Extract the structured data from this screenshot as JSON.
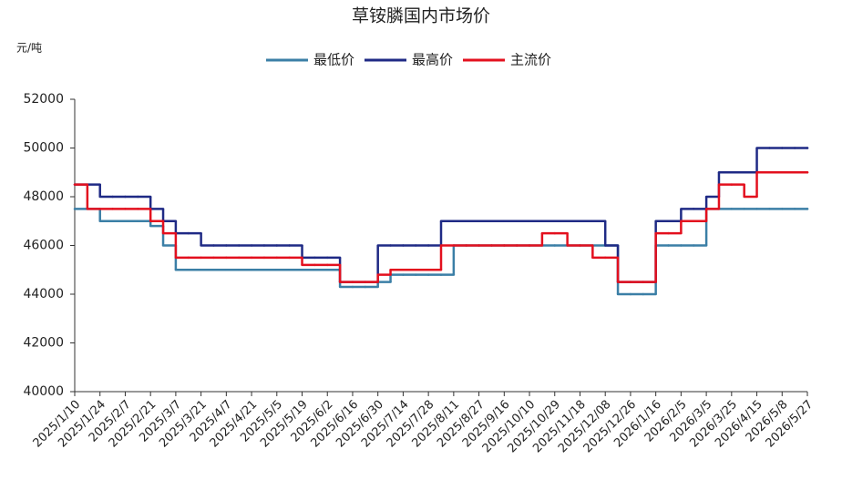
{
  "chart_data": {
    "type": "line",
    "title": "草铵膦国内市场价",
    "y_label": "元/吨",
    "categories": [
      "2025/1/10",
      null,
      "2025/1/24",
      null,
      "2025/2/7",
      null,
      "2025/2/21",
      null,
      "2025/3/7",
      null,
      "2025/3/21",
      null,
      "2025/4/7",
      null,
      "2025/4/21",
      null,
      "2025/5/5",
      null,
      "2025/5/19",
      null,
      "2025/6/2",
      null,
      "2025/6/16",
      null,
      "2025/6/30",
      null,
      "2025/7/14",
      null,
      "2025/7/28",
      null,
      "2025/8/11",
      null,
      "2025/8/27",
      null,
      "2025/9/16",
      null,
      "2025/10/10",
      null,
      "2025/10/29",
      null,
      "2025/11/18",
      null,
      "2025/12/08",
      null,
      "2025/12/26",
      null,
      "2026/1/16",
      null,
      "2026/2/5",
      null,
      "2026/3/5",
      null,
      "2026/3/25",
      null,
      "2026/4/15",
      null,
      "2026/5/8",
      null,
      "2026/5/27"
    ],
    "series": [
      {
        "name": "最低价",
        "color": "#3b7fa6",
        "values": [
          47500,
          47500,
          47000,
          47000,
          47000,
          47000,
          46800,
          46000,
          45000,
          45000,
          45000,
          45000,
          45000,
          45000,
          45000,
          45000,
          45000,
          45000,
          45000,
          45000,
          45000,
          44300,
          44300,
          44300,
          44500,
          44800,
          44800,
          44800,
          44800,
          44800,
          46000,
          46000,
          46000,
          46000,
          46000,
          46000,
          46000,
          46000,
          46000,
          46000,
          46000,
          46000,
          46000,
          44000,
          44000,
          44000,
          46000,
          46000,
          46000,
          46000,
          47500,
          47500,
          47500,
          47500,
          47500,
          47500,
          47500,
          47500,
          47500
        ]
      },
      {
        "name": "最高价",
        "color": "#1f2a85",
        "values": [
          48500,
          48500,
          48000,
          48000,
          48000,
          48000,
          47500,
          47000,
          46500,
          46500,
          46000,
          46000,
          46000,
          46000,
          46000,
          46000,
          46000,
          46000,
          45500,
          45500,
          45500,
          44500,
          44500,
          44500,
          46000,
          46000,
          46000,
          46000,
          46000,
          47000,
          47000,
          47000,
          47000,
          47000,
          47000,
          47000,
          47000,
          47000,
          47000,
          47000,
          47000,
          47000,
          46000,
          44500,
          44500,
          44500,
          47000,
          47000,
          47500,
          47500,
          48000,
          49000,
          49000,
          49000,
          50000,
          50000,
          50000,
          50000,
          50000
        ]
      },
      {
        "name": "主流价",
        "color": "#e3101e",
        "values": [
          48500,
          47500,
          47500,
          47500,
          47500,
          47500,
          47000,
          46500,
          45500,
          45500,
          45500,
          45500,
          45500,
          45500,
          45500,
          45500,
          45500,
          45500,
          45200,
          45200,
          45200,
          44500,
          44500,
          44500,
          44800,
          45000,
          45000,
          45000,
          45000,
          46000,
          46000,
          46000,
          46000,
          46000,
          46000,
          46000,
          46000,
          46500,
          46500,
          46000,
          46000,
          45500,
          45500,
          44500,
          44500,
          44500,
          46500,
          46500,
          47000,
          47000,
          47500,
          48500,
          48500,
          48000,
          49000,
          49000,
          49000,
          49000,
          49000
        ]
      }
    ],
    "ylim": [
      40000,
      52000
    ],
    "yticks": [
      40000,
      42000,
      44000,
      46000,
      48000,
      50000,
      52000
    ],
    "grid": false,
    "legend": "top"
  }
}
